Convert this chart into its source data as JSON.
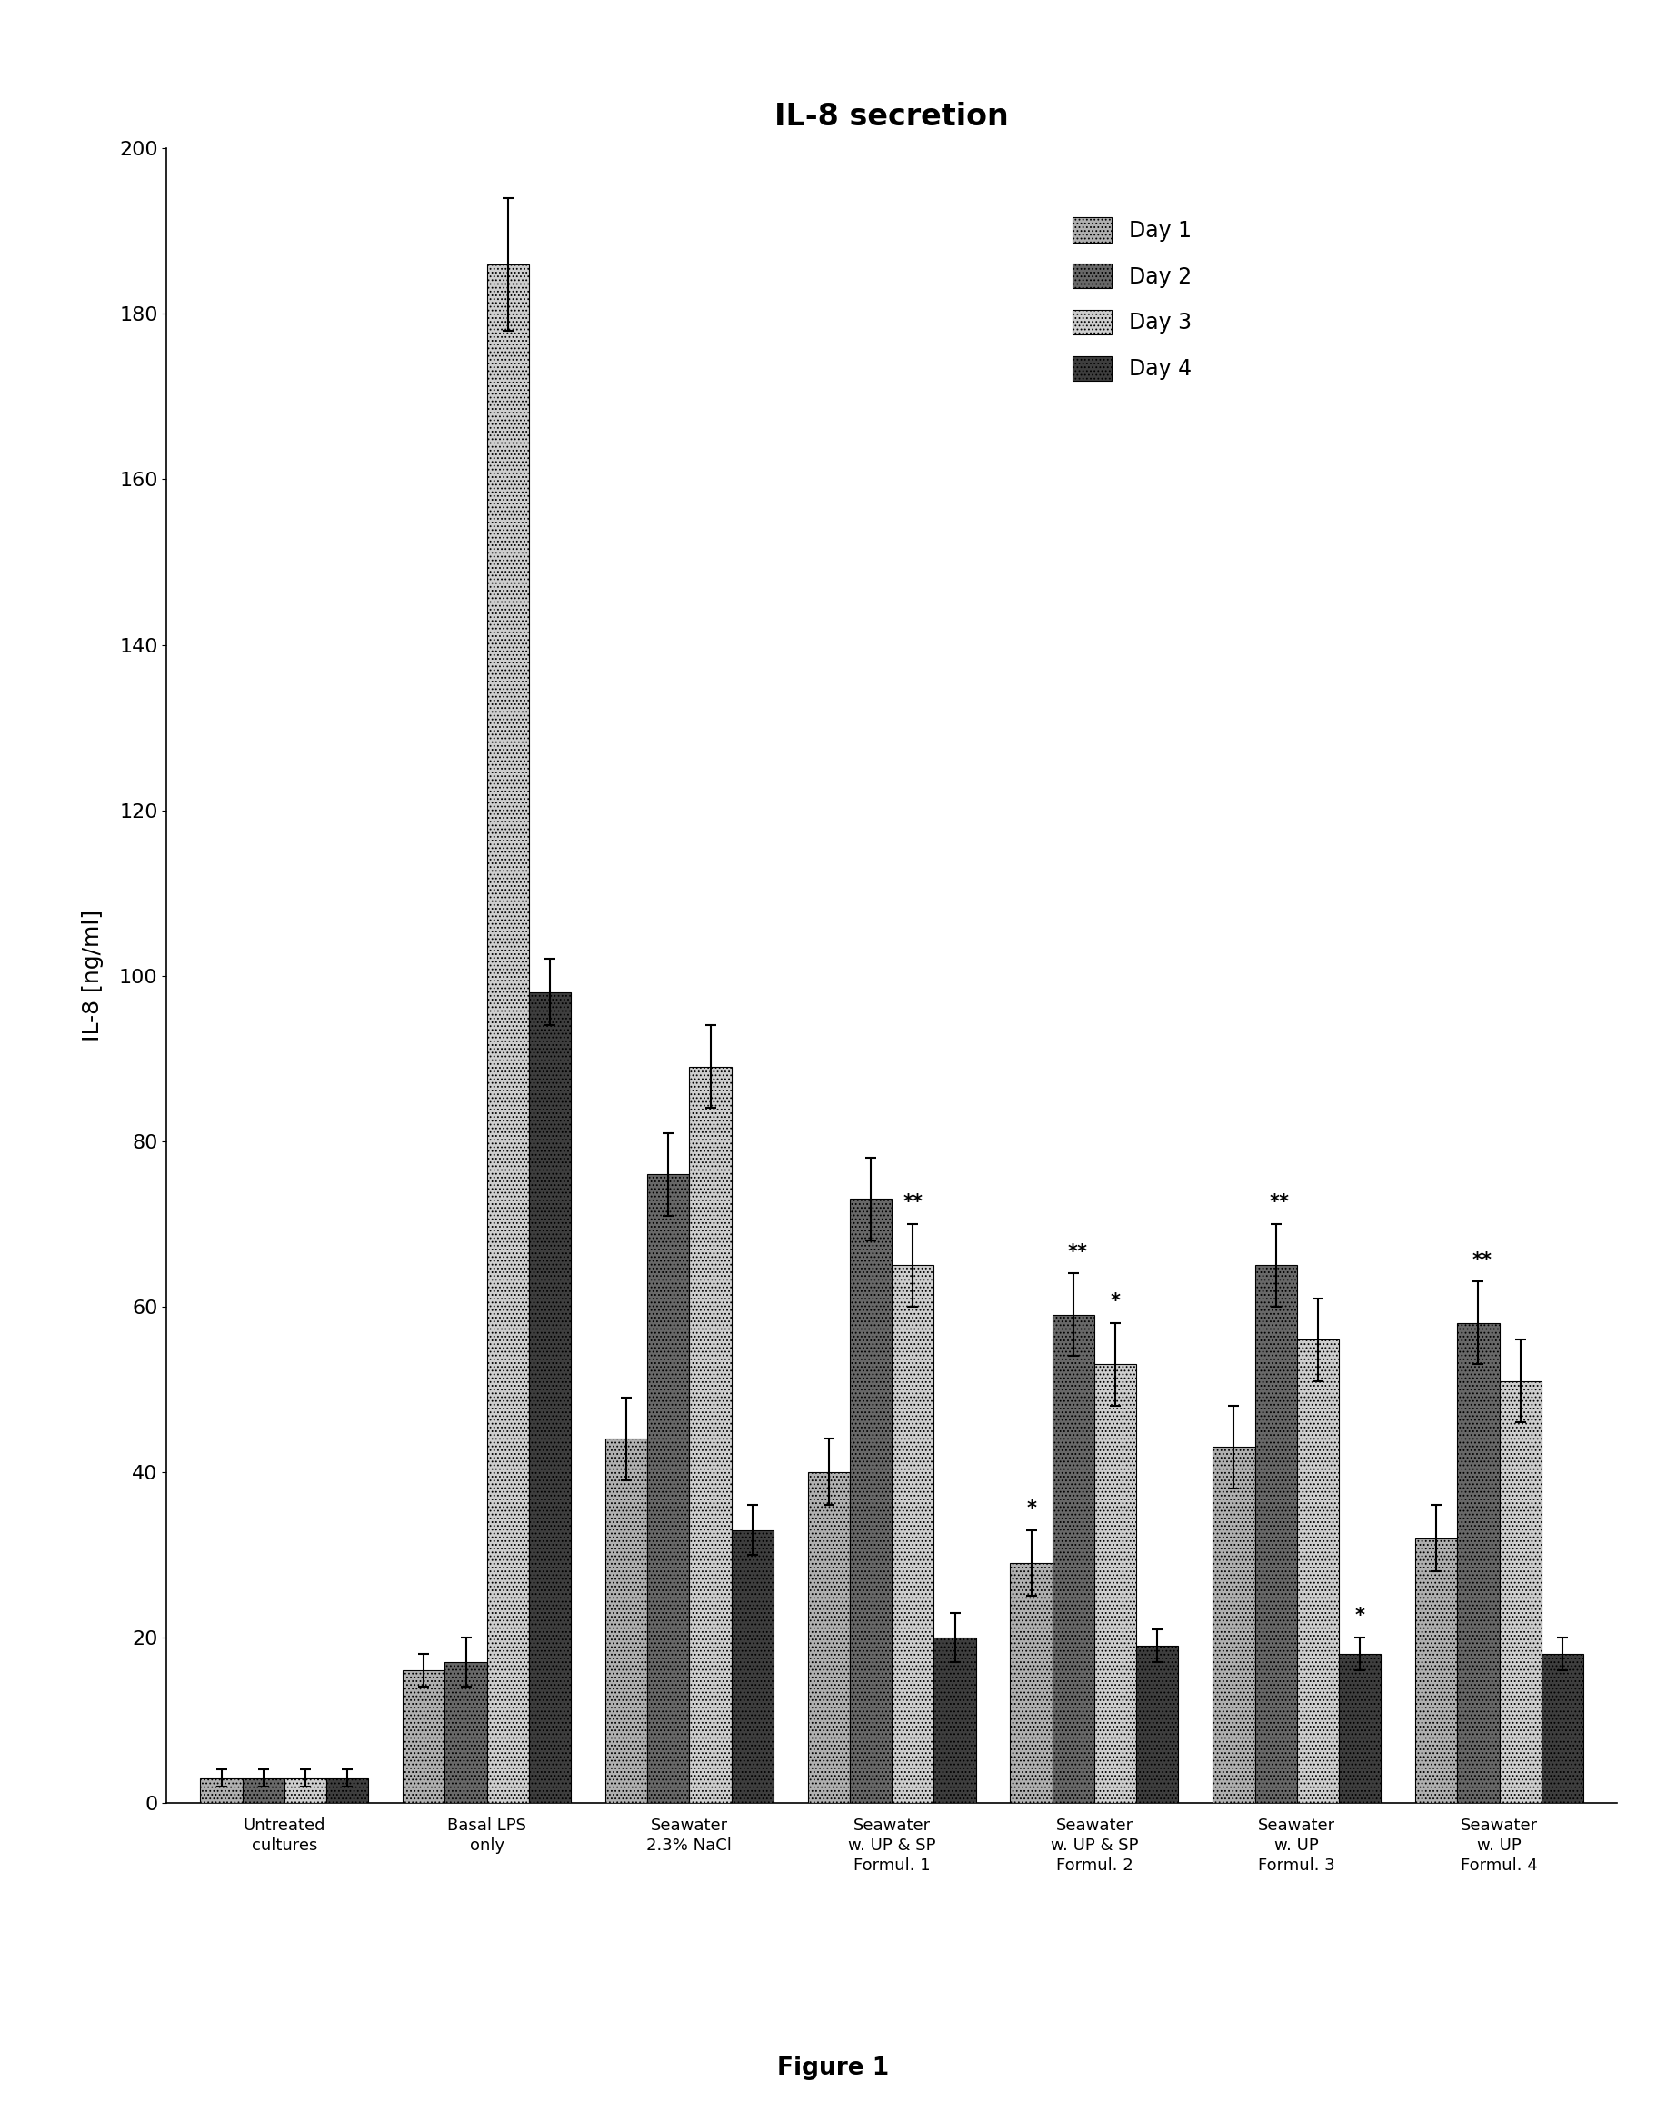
{
  "title": "IL-8 secretion",
  "ylabel": "IL-8 [ng/ml]",
  "xlabel_caption": "Figure 1",
  "ylim": [
    0,
    200
  ],
  "yticks": [
    0,
    20,
    40,
    60,
    80,
    100,
    120,
    140,
    160,
    180,
    200
  ],
  "categories": [
    "Untreated\ncultures",
    "Basal LPS\nonly",
    "Seawater\n2.3% NaCl",
    "Seawater\nw. UP & SP\nFormul. 1",
    "Seawater\nw. UP & SP\nFormul. 2",
    "Seawater\nw. UP\nFormul. 3",
    "Seawater\nw. UP\nFormul. 4"
  ],
  "legend_labels": [
    "Day 1",
    "Day 2",
    "Day 3",
    "Day 4"
  ],
  "bar_colors": [
    "#b8b8b8",
    "#757575",
    "#d8d8d8",
    "#424242"
  ],
  "bar_hatches": [
    "....",
    "....",
    "....",
    "...."
  ],
  "values": [
    [
      3,
      3,
      3,
      3
    ],
    [
      16,
      17,
      186,
      98
    ],
    [
      44,
      76,
      89,
      33
    ],
    [
      40,
      73,
      65,
      20
    ],
    [
      29,
      59,
      53,
      19
    ],
    [
      43,
      65,
      56,
      18
    ],
    [
      32,
      58,
      51,
      18
    ]
  ],
  "errors": [
    [
      1,
      1,
      1,
      1
    ],
    [
      2,
      3,
      8,
      4
    ],
    [
      5,
      5,
      5,
      3
    ],
    [
      4,
      5,
      5,
      3
    ],
    [
      4,
      5,
      5,
      2
    ],
    [
      5,
      5,
      5,
      2
    ],
    [
      4,
      5,
      5,
      2
    ]
  ],
  "background_color": "#ffffff",
  "title_fontsize": 24,
  "axis_fontsize": 18,
  "tick_fontsize": 16,
  "legend_fontsize": 17,
  "caption_fontsize": 19
}
